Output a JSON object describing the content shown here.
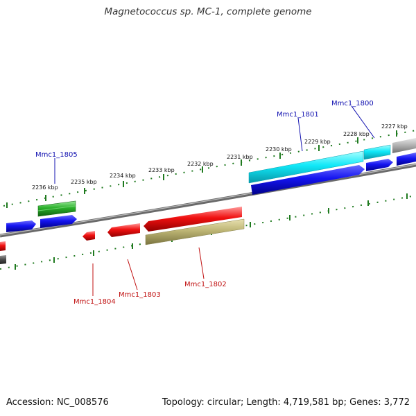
{
  "title": "Magnetococcus sp. MC-1, complete genome",
  "footer": {
    "accession": "Accession: NC_008576",
    "stats": "Topology: circular; Length: 4,719,581 bp; Genes: 3,772"
  },
  "scale_labels": [
    "2236 kbp",
    "2235 kbp",
    "2234 kbp",
    "2233 kbp",
    "2232 kbp",
    "2231 kbp",
    "2230 kbp",
    "2229 kbp",
    "2228 kbp",
    "2227 kbp"
  ],
  "gene_labels": {
    "mmc1_1805": "Mmc1_1805",
    "mmc1_1801": "Mmc1_1801",
    "mmc1_1800": "Mmc1_1800",
    "mmc1_1804": "Mmc1_1804",
    "mmc1_1803": "Mmc1_1803",
    "mmc1_1802": "Mmc1_1802"
  },
  "colors": {
    "plus_strand_label": "#1010b0",
    "minus_strand_label": "#c01010",
    "blue": "#0a0ae0",
    "cyan": "#10e0f0",
    "green": "#2aa02a",
    "red": "#e81010",
    "olive": "#b8b070",
    "gray": "#a0a0a0",
    "tick": "#1f7a1f"
  }
}
